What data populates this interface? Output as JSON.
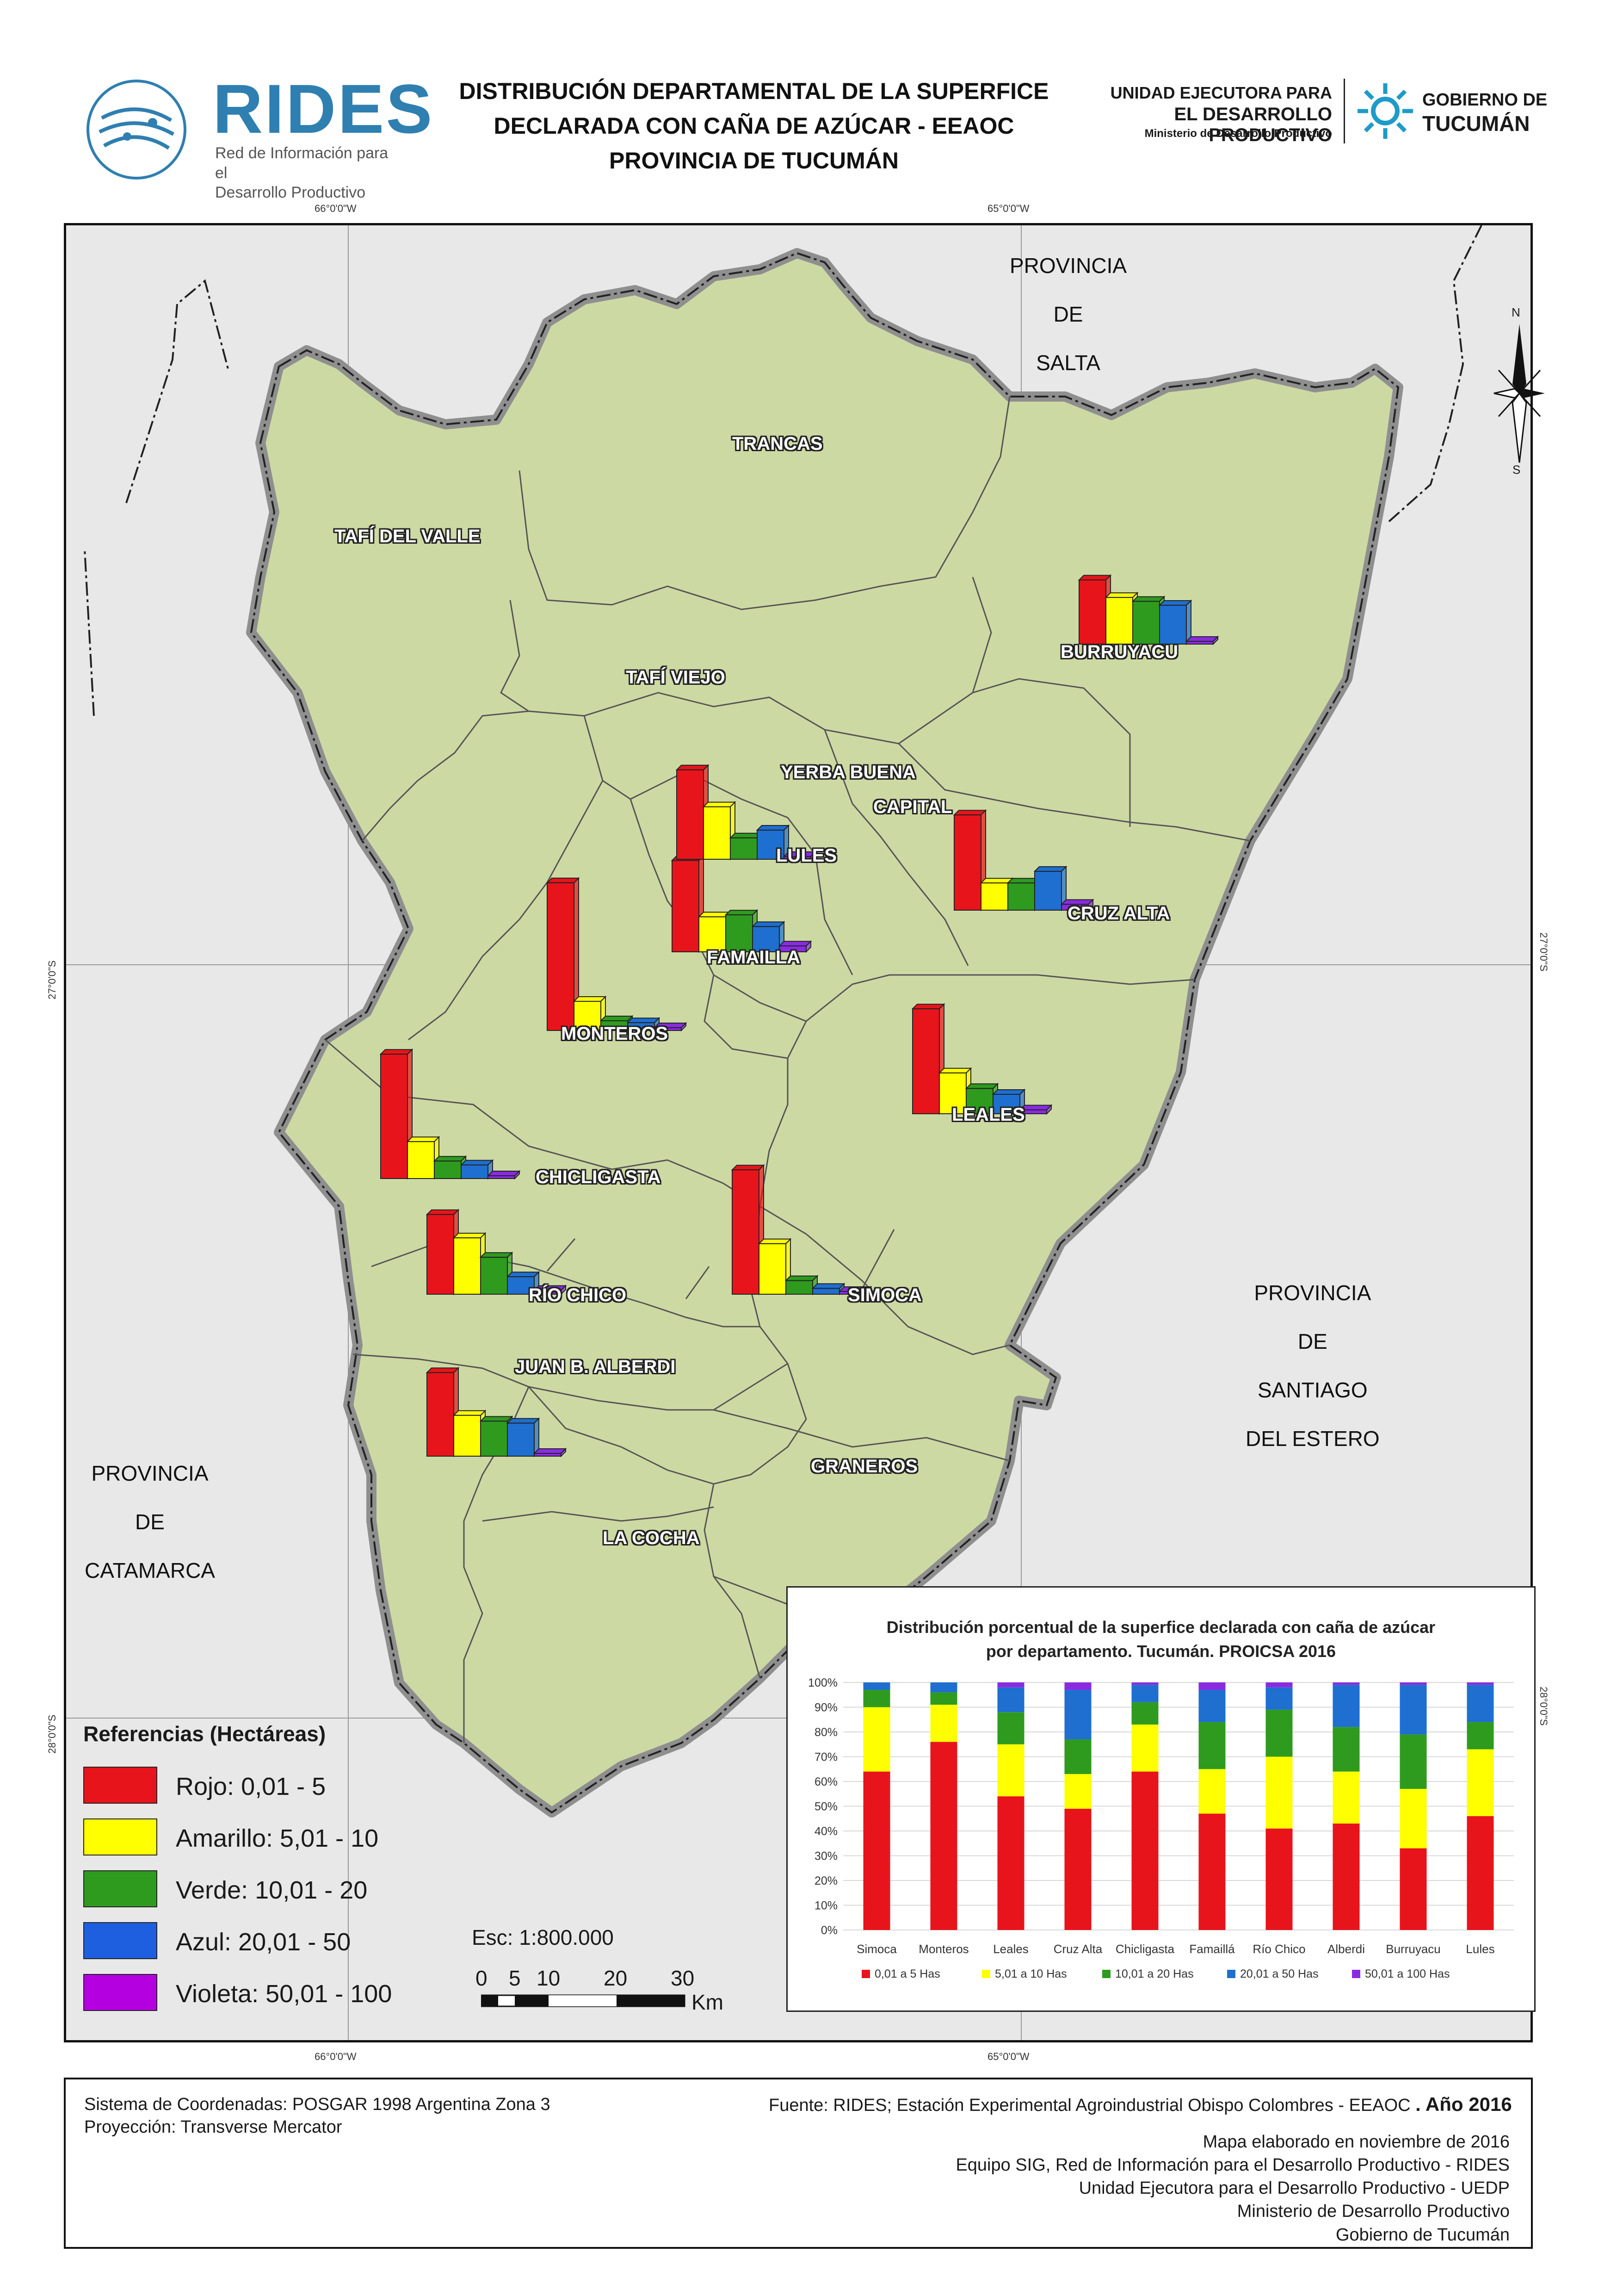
{
  "header": {
    "rides_name": "RIDES",
    "rides_sub_1": "Red de Información para el",
    "rides_sub_2": "Desarrollo Productivo",
    "title_1": "DISTRIBUCIÓN DEPARTAMENTAL DE LA SUPERFICE",
    "title_2": "DECLARADA CON CAÑA DE AZÚCAR - EEAOC",
    "title_3": "PROVINCIA DE TUCUMÁN",
    "uedp_1": "UNIDAD EJECUTORA PARA",
    "uedp_2": "EL DESARROLLO PRODUCTIVO",
    "uedp_3": "Ministerio de Desarrollo Productivo",
    "gob_1": "GOBIERNO DE",
    "gob_2": "TUCUMÁN"
  },
  "map": {
    "graticule": {
      "lon_west": "66°0'0\"W",
      "lon_east": "65°0'0\"W",
      "lat_north": "27°0'0\"S",
      "lat_south": "28°0'0\"S"
    },
    "provinces": {
      "salta": [
        "PROVINCIA",
        "DE",
        "SALTA"
      ],
      "santiago": [
        "PROVINCIA",
        "DE",
        "SANTIAGO",
        "DEL ESTERO"
      ],
      "catamarca": [
        "PROVINCIA",
        "DE",
        "CATAMARCA"
      ]
    },
    "departments": {
      "trancas": "TRANCAS",
      "tafi_valle": "TAFÍ DEL VALLE",
      "tafi_viejo": "TAFÍ VIEJO",
      "burruyacu": "BURRUYACU",
      "yerba_buena": "YERBA BUENA",
      "capital": "CAPITAL",
      "lules": "LULES",
      "cruz_alta": "CRUZ ALTA",
      "famailla": "FAMAILLA",
      "monteros": "MONTEROS",
      "leales": "LEALES",
      "chicligasta": "CHICLIGASTA",
      "rio_chico": "RÍO CHICO",
      "simoca": "SIMOCA",
      "juan_b_alberdi": "JUAN B. ALBERDI",
      "graneros": "GRANEROS",
      "la_cocha": "LA COCHA"
    },
    "north_n": "N",
    "north_s": "S",
    "map_fill": "#cdd9a3",
    "outside_fill": "#e8e8e8"
  },
  "legend": {
    "title": "Referencias (Hectáreas)",
    "items": [
      {
        "label": "Rojo: 0,01 - 5",
        "color": "#e8141b"
      },
      {
        "label": "Amarillo: 5,01 - 10",
        "color": "#ffff00"
      },
      {
        "label": "Verde: 10,01 - 20",
        "color": "#2e9b1f"
      },
      {
        "label": "Azul: 20,01 - 50",
        "color": "#1e5fe0"
      },
      {
        "label": "Violeta: 50,01 - 100",
        "color": "#b400e0"
      }
    ]
  },
  "scale": {
    "title": "Esc: 1:800.000",
    "ticks": [
      "0",
      "5",
      "10",
      "20",
      "30"
    ],
    "unit": "Km"
  },
  "chart_data": {
    "type": "bar",
    "stacked": true,
    "title": "Distribución porcentual de la superfice declarada con caña de azúcar",
    "subtitle": "por departamento. Tucumán. PROICSA 2016",
    "categories": [
      "Simoca",
      "Monteros",
      "Leales",
      "Cruz Alta",
      "Chicligasta",
      "Famaillá",
      "Río Chico",
      "Alberdi",
      "Burruyacu",
      "Lules"
    ],
    "y_ticks": [
      "0%",
      "10%",
      "20%",
      "30%",
      "40%",
      "50%",
      "60%",
      "70%",
      "80%",
      "90%",
      "100%"
    ],
    "ylim": [
      0,
      100
    ],
    "legend_position": "bottom",
    "series": [
      {
        "name": "0,01 a 5 Has",
        "color": "#e8141b",
        "values": [
          64,
          76,
          54,
          49,
          64,
          47,
          41,
          43,
          33,
          46
        ]
      },
      {
        "name": "5,01 a 10 Has",
        "color": "#ffff00",
        "values": [
          26,
          15,
          21,
          14,
          19,
          18,
          29,
          21,
          24,
          27
        ]
      },
      {
        "name": "10,01 a 20 Has",
        "color": "#2e9b1f",
        "values": [
          7,
          5,
          13,
          14,
          9,
          19,
          19,
          18,
          22,
          11
        ]
      },
      {
        "name": "20,01 a 50 Has",
        "color": "#1e6fd0",
        "values": [
          3,
          4,
          10,
          20,
          7,
          13,
          9,
          17,
          20,
          15
        ]
      },
      {
        "name": "50,01  a 100 Has",
        "color": "#8a2be2",
        "values": [
          0,
          0,
          2,
          3,
          1,
          3,
          2,
          1,
          1,
          1
        ]
      }
    ]
  },
  "footer": {
    "crs": "Sistema de Coordenadas: POSGAR 1998 Argentina Zona 3",
    "projection": "Proyección: Transverse Mercator",
    "source": "Fuente: RIDES; Estación Experimental Agroindustrial Obispo Colombres - EEAOC",
    "year": ". Año 2016",
    "credits": [
      "Mapa elaborado en noviembre de 2016",
      "Equipo SIG, Red de Información para el Desarrollo Productivo - RIDES",
      "Unidad Ejecutora para el Desarrollo Productivo - UEDP",
      "Ministerio de Desarrollo Productivo",
      "Gobierno de Tucumán"
    ]
  }
}
